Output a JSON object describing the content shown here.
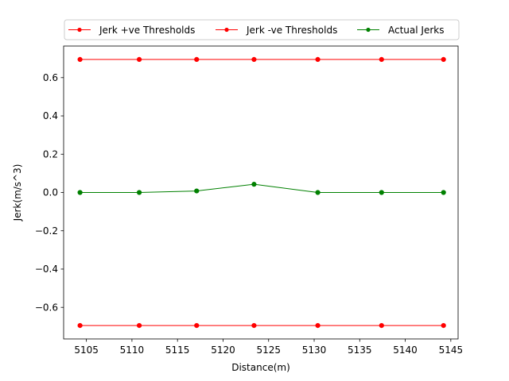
{
  "chart_data": {
    "type": "line",
    "xlabel": "Distance(m)",
    "ylabel": "Jerk(m/s^3)",
    "xlim": [
      5102.5,
      5145.8
    ],
    "ylim": [
      -0.765,
      0.765
    ],
    "x_ticks": [
      5105,
      5110,
      5115,
      5120,
      5125,
      5130,
      5135,
      5140,
      5145
    ],
    "y_ticks": [
      -0.6,
      -0.4,
      -0.2,
      0.0,
      0.2,
      0.4,
      0.6
    ],
    "x_tick_labels": [
      "5105",
      "5110",
      "5115",
      "5120",
      "5125",
      "5130",
      "5135",
      "5140",
      "5145"
    ],
    "y_tick_labels": [
      "−0.6",
      "−0.4",
      "−0.2",
      "0.0",
      "0.2",
      "0.4",
      "0.6"
    ],
    "legend_position": "top",
    "grid": false,
    "x": [
      5104.3,
      5110.8,
      5117.1,
      5123.4,
      5130.4,
      5137.4,
      5144.2
    ],
    "series": [
      {
        "name": "Jerk +ve Thresholds",
        "color": "#ff0000",
        "values": [
          0.695,
          0.695,
          0.695,
          0.695,
          0.695,
          0.695,
          0.695
        ]
      },
      {
        "name": "Jerk -ve Thresholds",
        "color": "#ff0000",
        "values": [
          -0.695,
          -0.695,
          -0.695,
          -0.695,
          -0.695,
          -0.695,
          -0.695
        ]
      },
      {
        "name": "Actual Jerks",
        "color": "#008000",
        "values": [
          0.0,
          0.0,
          0.008,
          0.043,
          0.0,
          0.0,
          0.0
        ]
      }
    ]
  }
}
